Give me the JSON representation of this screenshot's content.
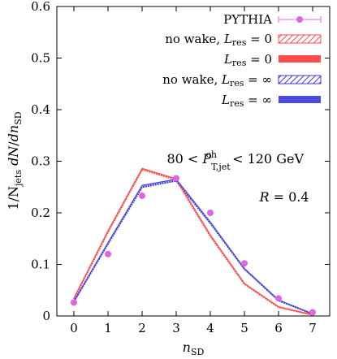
{
  "chart_data": {
    "type": "line",
    "xlabel": "n_SD",
    "ylabel": "1/N_jets dN/dn_SD",
    "xlim": [
      -0.5,
      7.5
    ],
    "ylim": [
      0,
      0.6
    ],
    "x_ticks": [
      "0",
      "1",
      "2",
      "3",
      "4",
      "5",
      "6",
      "7"
    ],
    "y_ticks": [
      "0",
      "0.1",
      "0.2",
      "0.3",
      "0.4",
      "0.5",
      "0.6"
    ],
    "grid": false,
    "legend_position": "top-right",
    "annotations": [
      "80 < P^ch_T,jet < 120 GeV",
      "R = 0.4"
    ],
    "series": [
      {
        "name": "PYTHIA",
        "style": "points",
        "color": "#e066e0",
        "x": [
          0,
          1,
          2,
          3,
          4,
          5,
          6,
          7
        ],
        "values": [
          0.026,
          0.12,
          0.233,
          0.267,
          0.2,
          0.102,
          0.034,
          0.007
        ]
      },
      {
        "name": "no wake, L_res = 0",
        "style": "hatched-band",
        "color": "#ff4d4d",
        "x": [
          0,
          1,
          2,
          3,
          4,
          5,
          6,
          7
        ],
        "values": [
          0.033,
          0.163,
          0.284,
          0.264,
          0.155,
          0.062,
          0.017,
          0.002
        ]
      },
      {
        "name": "L_res = 0",
        "style": "solid-band",
        "color": "#ff4d4d",
        "x": [
          0,
          1,
          2,
          3,
          4,
          5,
          6,
          7
        ],
        "values": [
          0.034,
          0.165,
          0.286,
          0.266,
          0.157,
          0.063,
          0.018,
          0.002
        ]
      },
      {
        "name": "no wake, L_res = ∞",
        "style": "hatched-band",
        "color": "#3a3ad6",
        "x": [
          0,
          1,
          2,
          3,
          4,
          5,
          6,
          7
        ],
        "values": [
          0.028,
          0.14,
          0.25,
          0.262,
          0.18,
          0.091,
          0.03,
          0.004
        ]
      },
      {
        "name": "L_res = ∞",
        "style": "solid-band",
        "color": "#4a4ae0",
        "x": [
          0,
          1,
          2,
          3,
          4,
          5,
          6,
          7
        ],
        "values": [
          0.028,
          0.142,
          0.253,
          0.265,
          0.182,
          0.092,
          0.031,
          0.004
        ]
      }
    ]
  }
}
